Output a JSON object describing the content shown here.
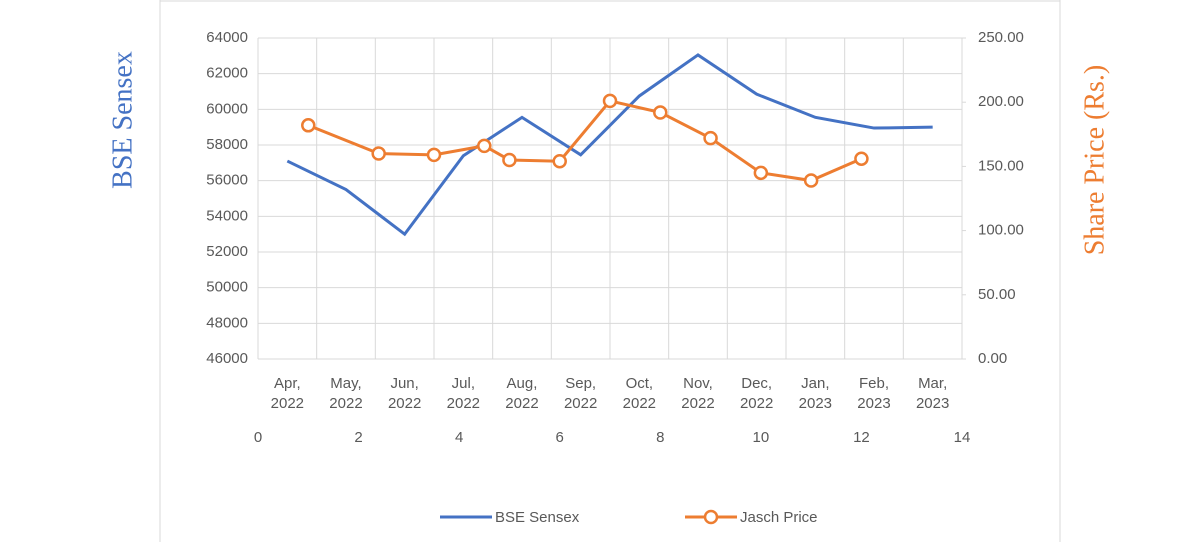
{
  "chart_data": {
    "type": "line",
    "categories": [
      "Apr, 2022",
      "May, 2022",
      "Jun, 2022",
      "Jul, 2022",
      "Aug, 2022",
      "Sep, 2022",
      "Oct, 2022",
      "Nov, 2022",
      "Dec, 2022",
      "Jan, 2023",
      "Feb, 2023",
      "Mar, 2023"
    ],
    "series": [
      {
        "name": "BSE Sensex",
        "color": "#4472c4",
        "values": [
          57100,
          55500,
          53000,
          57400,
          59550,
          57450,
          60750,
          63050,
          60850,
          59550,
          58950,
          59000
        ]
      },
      {
        "name": "Jasch Price",
        "color": "#ed7d31",
        "axis": "y2",
        "x": [
          1,
          2.4,
          3.5,
          4.5,
          5,
          6,
          7,
          8,
          9,
          10,
          11,
          12
        ],
        "values": [
          182,
          160,
          159,
          166,
          155,
          154,
          201,
          192,
          172,
          145,
          139,
          156
        ]
      }
    ],
    "ylabel": "BSE Sensex",
    "y2label": "Share Price (Rs.)",
    "ylim": [
      46000,
      64000
    ],
    "yticks": [
      46000,
      48000,
      50000,
      52000,
      54000,
      56000,
      58000,
      60000,
      62000,
      64000
    ],
    "y2lim": [
      0,
      250
    ],
    "y2ticks": [
      {
        "value": 0,
        "label": "0.00"
      },
      {
        "value": 50,
        "label": "50.00"
      },
      {
        "value": 100,
        "label": "100.00"
      },
      {
        "value": 150,
        "label": "150.00"
      },
      {
        "value": 200,
        "label": "200.00"
      },
      {
        "value": 250,
        "label": "250.00"
      }
    ],
    "xlim": [
      0,
      14
    ],
    "xticks": [
      0,
      2,
      4,
      6,
      8,
      10,
      12,
      14
    ],
    "grid": true,
    "legend": "bottom"
  }
}
